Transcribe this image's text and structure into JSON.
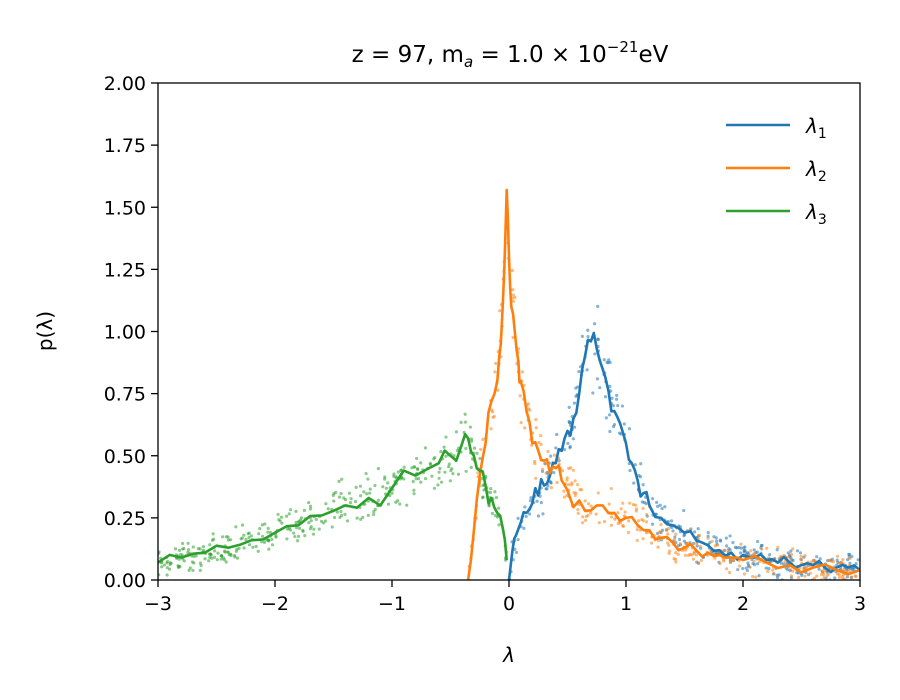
{
  "chart_data": {
    "type": "line",
    "title": "z = 97, m",
    "title_sub": "a",
    "title_eq": " = 1.0 × 10",
    "title_sup": "−21",
    "title_unit": "eV",
    "xlabel": "λ",
    "ylabel": "p(λ)",
    "xlim": [
      -3,
      3
    ],
    "ylim": [
      0,
      2
    ],
    "xticks": [
      "−3",
      "−2",
      "−1",
      "0",
      "1",
      "2",
      "3"
    ],
    "xtick_values": [
      -3,
      -2,
      -1,
      0,
      1,
      2,
      3
    ],
    "yticks": [
      "0.00",
      "0.25",
      "0.50",
      "0.75",
      "1.00",
      "1.25",
      "1.50",
      "1.75",
      "2.00"
    ],
    "ytick_values": [
      0,
      0.25,
      0.5,
      0.75,
      1.0,
      1.25,
      1.5,
      1.75,
      2.0
    ],
    "grid": false,
    "legend_position": "top-right",
    "colors": {
      "lambda1": "#1f77b4",
      "lambda2": "#ff7f0e",
      "lambda3": "#2ca02c"
    },
    "series": [
      {
        "name": "λ",
        "sub": "1",
        "color": "#1f77b4",
        "x": [
          0.0,
          0.03,
          0.06,
          0.1,
          0.15,
          0.2,
          0.25,
          0.3,
          0.35,
          0.4,
          0.45,
          0.5,
          0.55,
          0.6,
          0.65,
          0.7,
          0.75,
          0.8,
          0.85,
          0.9,
          0.95,
          1.0,
          1.05,
          1.1,
          1.15,
          1.2,
          1.3,
          1.4,
          1.5,
          1.6,
          1.7,
          1.8,
          1.9,
          2.0,
          2.1,
          2.2,
          2.3,
          2.4,
          2.5,
          2.6,
          2.7,
          2.8,
          2.9,
          3.0
        ],
        "y": [
          0.0,
          0.12,
          0.18,
          0.23,
          0.27,
          0.31,
          0.34,
          0.38,
          0.42,
          0.47,
          0.52,
          0.6,
          0.65,
          0.75,
          0.9,
          0.96,
          0.93,
          0.85,
          0.76,
          0.68,
          0.63,
          0.55,
          0.47,
          0.4,
          0.35,
          0.3,
          0.25,
          0.22,
          0.19,
          0.16,
          0.14,
          0.12,
          0.11,
          0.1,
          0.09,
          0.08,
          0.07,
          0.07,
          0.06,
          0.06,
          0.05,
          0.05,
          0.05,
          0.04
        ]
      },
      {
        "name": "λ",
        "sub": "2",
        "color": "#ff7f0e",
        "x": [
          -0.35,
          -0.3,
          -0.25,
          -0.2,
          -0.15,
          -0.1,
          -0.07,
          -0.04,
          -0.02,
          0.0,
          0.02,
          0.05,
          0.08,
          0.1,
          0.15,
          0.2,
          0.25,
          0.3,
          0.35,
          0.4,
          0.45,
          0.5,
          0.6,
          0.7,
          0.8,
          0.9,
          1.0,
          1.1,
          1.2,
          1.3,
          1.4,
          1.5,
          1.6,
          1.7,
          1.8,
          1.9,
          2.0,
          2.2,
          2.4,
          2.6,
          2.8,
          3.0
        ],
        "y": [
          0.0,
          0.2,
          0.42,
          0.55,
          0.72,
          0.8,
          0.95,
          1.25,
          1.57,
          1.3,
          1.1,
          1.0,
          0.88,
          0.8,
          0.68,
          0.55,
          0.52,
          0.48,
          0.43,
          0.45,
          0.4,
          0.36,
          0.32,
          0.28,
          0.3,
          0.27,
          0.25,
          0.22,
          0.2,
          0.17,
          0.15,
          0.13,
          0.12,
          0.11,
          0.1,
          0.09,
          0.08,
          0.07,
          0.06,
          0.05,
          0.04,
          0.04
        ]
      },
      {
        "name": "λ",
        "sub": "3",
        "color": "#2ca02c",
        "x": [
          -3.0,
          -2.8,
          -2.6,
          -2.4,
          -2.2,
          -2.0,
          -1.8,
          -1.6,
          -1.4,
          -1.2,
          -1.0,
          -0.8,
          -0.6,
          -0.5,
          -0.4,
          -0.35,
          -0.3,
          -0.25,
          -0.2,
          -0.15,
          -0.1,
          -0.05,
          -0.02
        ],
        "y": [
          0.07,
          0.09,
          0.11,
          0.13,
          0.16,
          0.19,
          0.22,
          0.26,
          0.3,
          0.33,
          0.37,
          0.42,
          0.47,
          0.5,
          0.55,
          0.57,
          0.5,
          0.44,
          0.38,
          0.33,
          0.27,
          0.2,
          0.08
        ]
      }
    ]
  }
}
